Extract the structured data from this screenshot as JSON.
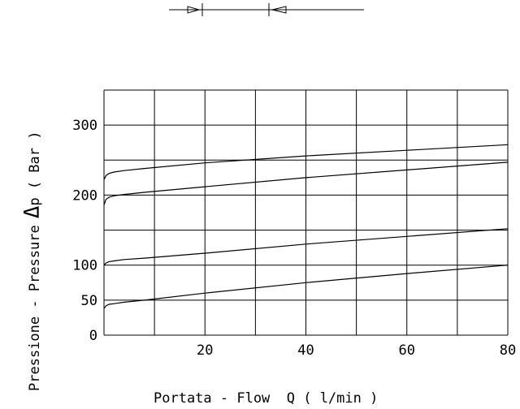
{
  "chart_data": {
    "type": "line",
    "xlabel": "Portata - Flow  Q ( l/min )",
    "ylabel_prefix": "Pressione - Pressure",
    "ylabel_delta": "Δ",
    "ylabel_suffix": "p ( Bar )",
    "xlim": [
      0,
      80
    ],
    "ylim": [
      0,
      350
    ],
    "x_ticks": [
      20,
      40,
      60,
      80
    ],
    "x_tick_labels": [
      "20",
      "40",
      "60",
      "80"
    ],
    "y_ticks": [
      0,
      50,
      100,
      200,
      300
    ],
    "y_tick_labels": [
      "0",
      "50",
      "100",
      "200",
      "300"
    ],
    "grid_x": [
      0,
      10,
      20,
      30,
      40,
      50,
      60,
      70,
      80
    ],
    "grid_y": [
      0,
      50,
      100,
      150,
      200,
      250,
      300,
      350
    ],
    "grid": true,
    "series": [
      {
        "x": [
          0,
          0.4,
          1,
          2,
          4,
          8,
          20,
          40,
          60,
          80
        ],
        "y": [
          38,
          42,
          44,
          45,
          47,
          50,
          60,
          75,
          88,
          100
        ]
      },
      {
        "x": [
          0,
          0.4,
          1,
          2,
          4,
          8,
          20,
          40,
          60,
          80
        ],
        "y": [
          100,
          103,
          105,
          106,
          108,
          110,
          117,
          130,
          141,
          152
        ]
      },
      {
        "x": [
          0,
          0.4,
          1,
          2,
          4,
          8,
          20,
          40,
          60,
          80
        ],
        "y": [
          186,
          194,
          197,
          199,
          201,
          204,
          212,
          225,
          236,
          247
        ]
      },
      {
        "x": [
          0,
          0.4,
          1,
          2,
          4,
          8,
          20,
          40,
          60,
          80
        ],
        "y": [
          222,
          228,
          231,
          233,
          235,
          238,
          246,
          256,
          264,
          272
        ]
      }
    ]
  },
  "symbol": {
    "name": "flow-valve-symbol"
  }
}
